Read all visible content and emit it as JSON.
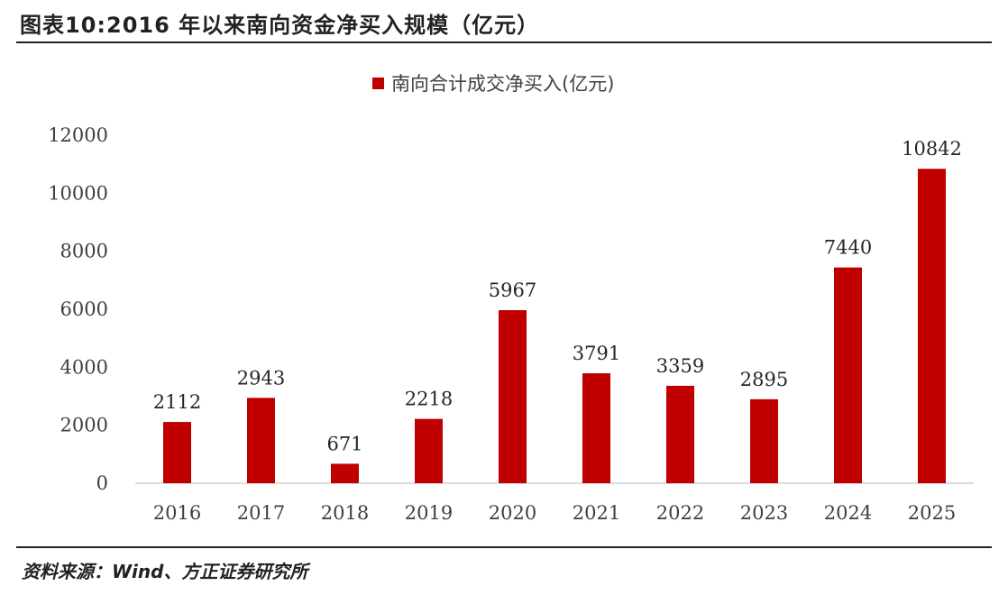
{
  "figure": {
    "title": "图表10:2016 年以来南向资金净买入规模（亿元）",
    "source": "资料来源：Wind、方正证券研究所"
  },
  "chart_data": {
    "type": "bar",
    "categories": [
      "2016",
      "2017",
      "2018",
      "2019",
      "2020",
      "2021",
      "2022",
      "2023",
      "2024",
      "2025"
    ],
    "series": [
      {
        "name": "南向合计成交净买入(亿元)",
        "values": [
          2112,
          2943,
          671,
          2218,
          5967,
          3791,
          3359,
          2895,
          7440,
          10842
        ],
        "color": "#c00000"
      }
    ],
    "ylim": [
      0,
      12000
    ],
    "yticks": [
      0,
      2000,
      4000,
      6000,
      8000,
      10000,
      12000
    ],
    "legend_position": "top-center",
    "grid": false,
    "data_labels": true
  }
}
